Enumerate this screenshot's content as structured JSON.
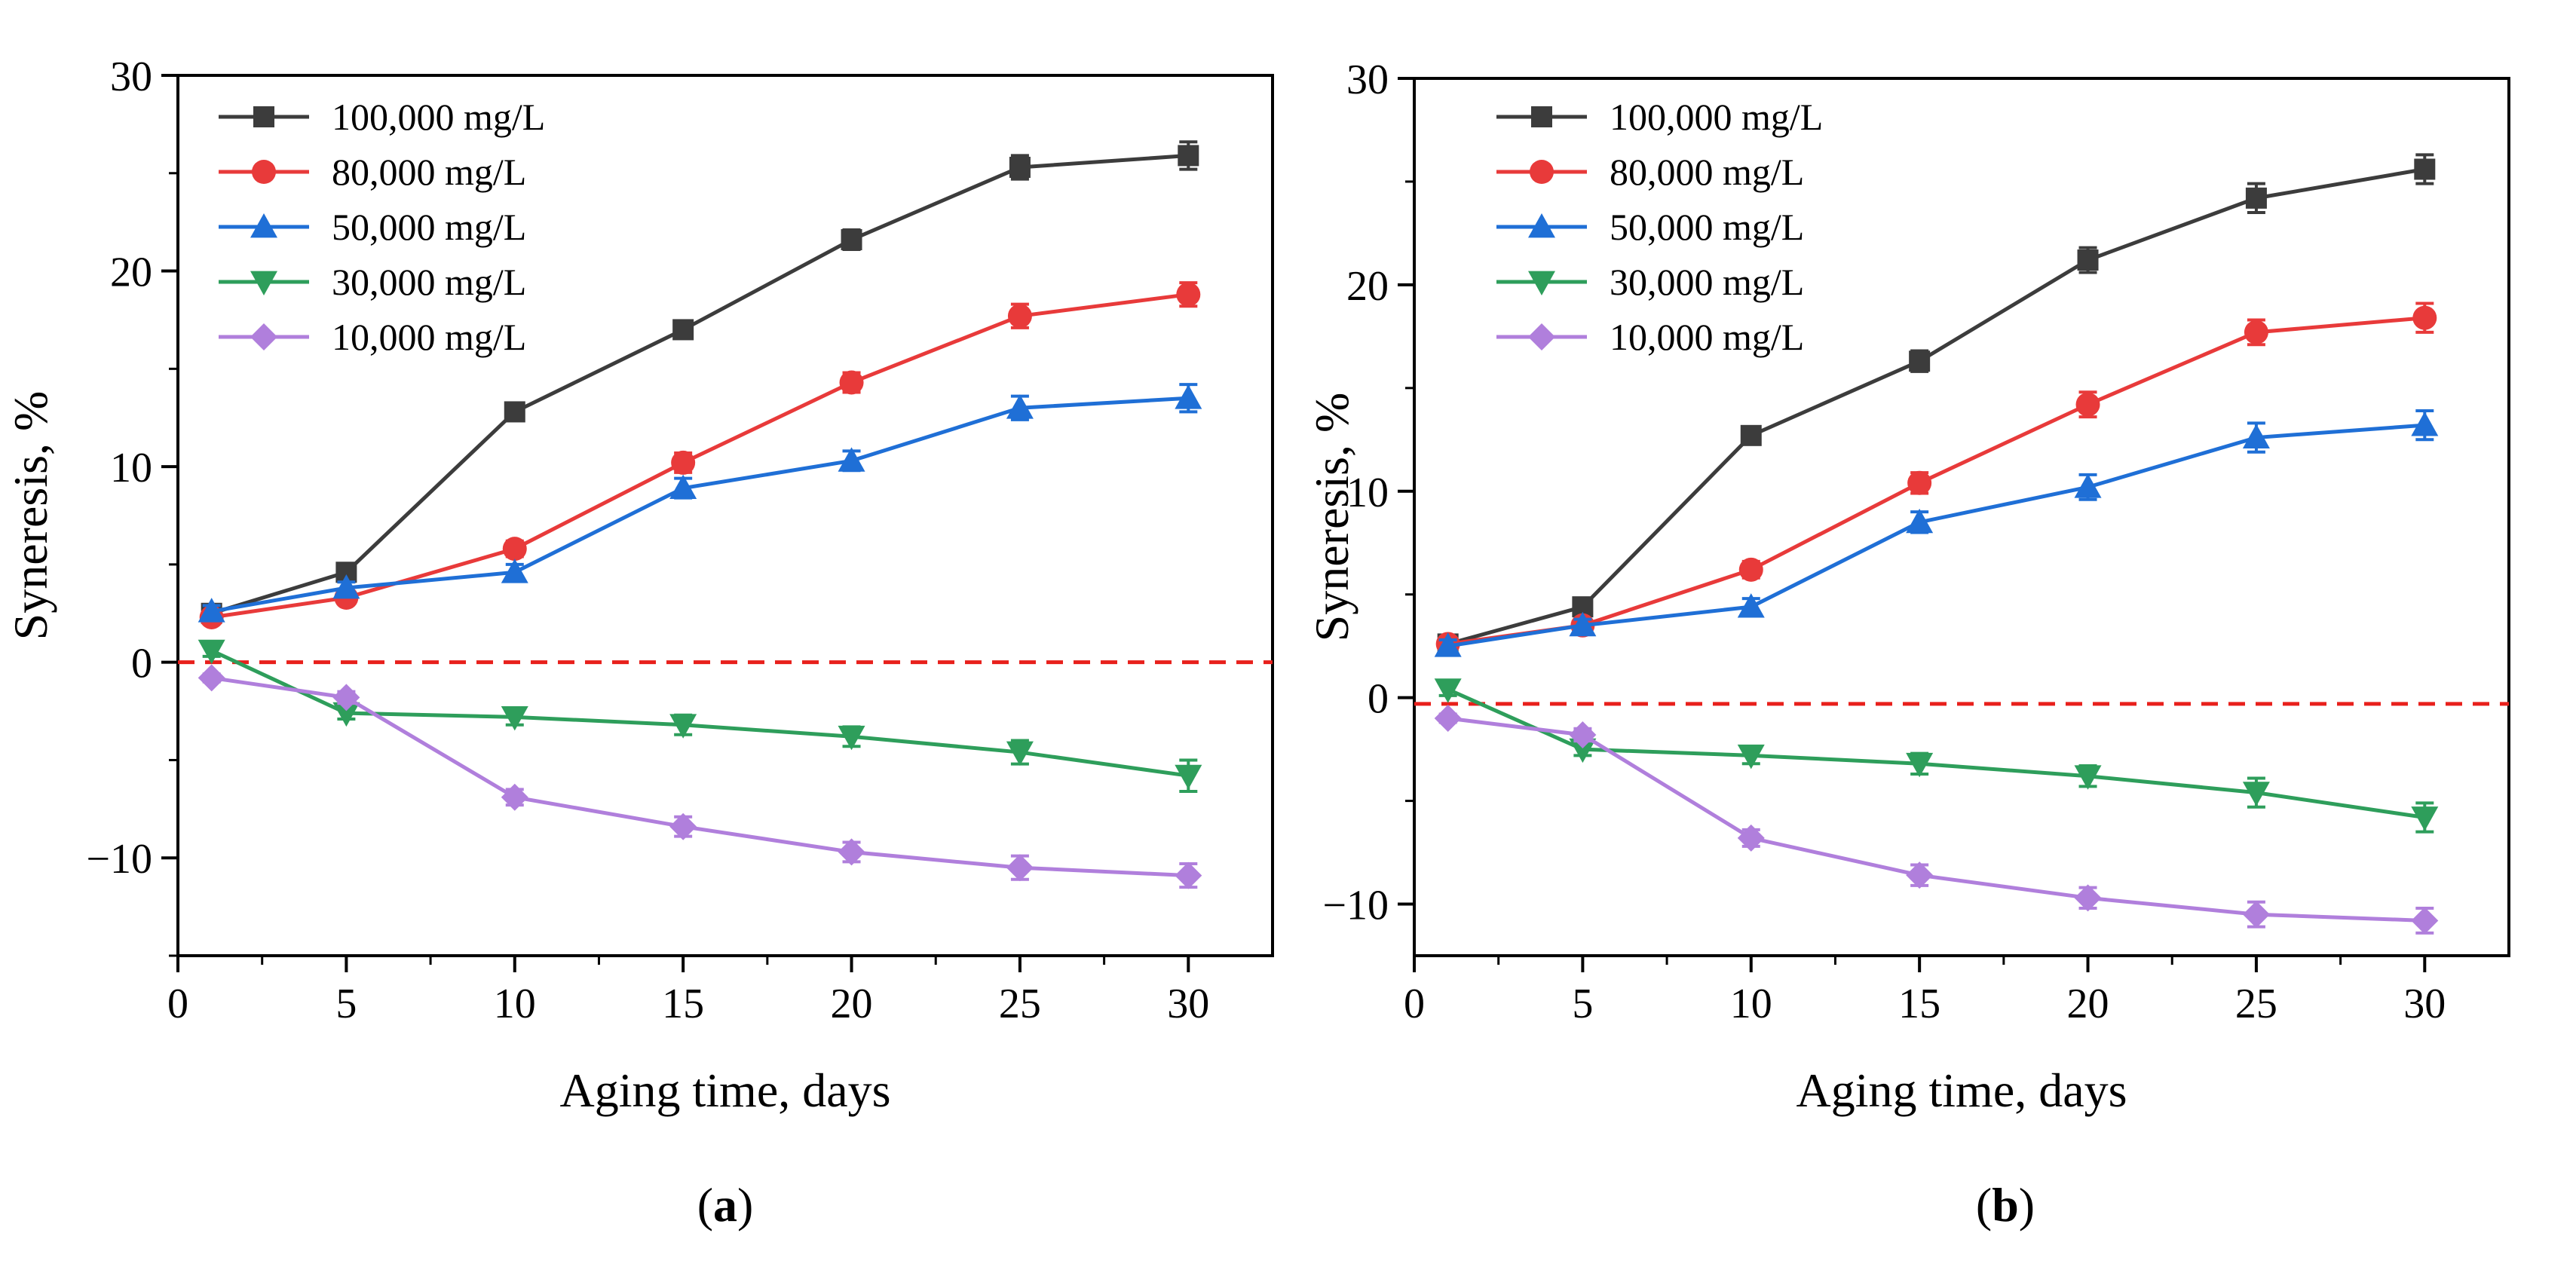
{
  "chart_data": [
    {
      "type": "line",
      "panel_label": "a",
      "xlabel": "Aging time, days",
      "ylabel": "Syneresis, %",
      "xlim": [
        0,
        32.5
      ],
      "ylim": [
        -15,
        30
      ],
      "xticks": [
        0,
        5,
        10,
        15,
        20,
        25,
        30
      ],
      "xtick_labels": [
        "0",
        "5",
        "10",
        "15",
        "20",
        "25",
        "30"
      ],
      "yticks": [
        -10,
        0,
        10,
        20,
        30
      ],
      "ytick_labels": [
        "−10",
        "0",
        "10",
        "20",
        "30"
      ],
      "reference_line": {
        "y": 0,
        "color": "#e8201c",
        "style": "dashed"
      },
      "legend_position": "top-left",
      "x": [
        1,
        5,
        10,
        15,
        20,
        25,
        30
      ],
      "series": [
        {
          "name": "100,000 mg/L",
          "color": "#3c3c3c",
          "marker": "square",
          "values": [
            2.5,
            4.6,
            12.8,
            17.0,
            21.6,
            25.3,
            25.9
          ],
          "errors": [
            0.3,
            0.4,
            0.4,
            0.4,
            0.5,
            0.6,
            0.7
          ]
        },
        {
          "name": "80,000 mg/L",
          "color": "#e83a3a",
          "marker": "circle",
          "values": [
            2.3,
            3.3,
            5.8,
            10.2,
            14.3,
            17.7,
            18.8
          ],
          "errors": [
            0.3,
            0.3,
            0.4,
            0.5,
            0.5,
            0.6,
            0.6
          ]
        },
        {
          "name": "50,000 mg/L",
          "color": "#1f6fd6",
          "marker": "triangle-up",
          "values": [
            2.6,
            3.8,
            4.6,
            8.9,
            10.3,
            13.0,
            13.5
          ],
          "errors": [
            0.3,
            0.3,
            0.4,
            0.5,
            0.5,
            0.6,
            0.7
          ]
        },
        {
          "name": "30,000 mg/L",
          "color": "#2e9e5b",
          "marker": "triangle-down",
          "values": [
            0.6,
            -2.6,
            -2.8,
            -3.2,
            -3.8,
            -4.6,
            -5.8
          ],
          "errors": [
            0.3,
            0.3,
            0.4,
            0.5,
            0.5,
            0.6,
            0.8
          ]
        },
        {
          "name": "10,000 mg/L",
          "color": "#b07fdc",
          "marker": "diamond",
          "values": [
            -0.8,
            -1.8,
            -6.9,
            -8.4,
            -9.7,
            -10.5,
            -10.9
          ],
          "errors": [
            0.2,
            0.3,
            0.4,
            0.5,
            0.5,
            0.6,
            0.6
          ]
        }
      ]
    },
    {
      "type": "line",
      "panel_label": "b",
      "xlabel": "Aging time, days",
      "ylabel": "Syneresis, %",
      "xlim": [
        0,
        32.5
      ],
      "ylim": [
        -12.5,
        30
      ],
      "xticks": [
        0,
        5,
        10,
        15,
        20,
        25,
        30
      ],
      "xtick_labels": [
        "0",
        "5",
        "10",
        "15",
        "20",
        "25",
        "30"
      ],
      "yticks": [
        -10,
        0,
        10,
        20,
        30
      ],
      "ytick_labels": [
        "−10",
        "0",
        "10",
        "20",
        "30"
      ],
      "reference_line": {
        "y": -0.3,
        "color": "#e8201c",
        "style": "dashed"
      },
      "legend_position": "top-left",
      "x": [
        1,
        5,
        10,
        15,
        20,
        25,
        30
      ],
      "series": [
        {
          "name": "100,000 mg/L",
          "color": "#3c3c3c",
          "marker": "square",
          "values": [
            2.6,
            4.4,
            12.7,
            16.3,
            21.2,
            24.2,
            25.6
          ],
          "errors": [
            0.3,
            0.4,
            0.4,
            0.5,
            0.6,
            0.7,
            0.7
          ]
        },
        {
          "name": "80,000 mg/L",
          "color": "#e83a3a",
          "marker": "circle",
          "values": [
            2.6,
            3.5,
            6.2,
            10.4,
            14.2,
            17.7,
            18.4
          ],
          "errors": [
            0.3,
            0.3,
            0.4,
            0.5,
            0.6,
            0.6,
            0.7
          ]
        },
        {
          "name": "50,000 mg/L",
          "color": "#1f6fd6",
          "marker": "triangle-up",
          "values": [
            2.5,
            3.5,
            4.4,
            8.5,
            10.2,
            12.6,
            13.2
          ],
          "errors": [
            0.3,
            0.3,
            0.4,
            0.5,
            0.6,
            0.7,
            0.7
          ]
        },
        {
          "name": "30,000 mg/L",
          "color": "#2e9e5b",
          "marker": "triangle-down",
          "values": [
            0.4,
            -2.5,
            -2.8,
            -3.2,
            -3.8,
            -4.6,
            -5.8
          ],
          "errors": [
            0.3,
            0.3,
            0.4,
            0.5,
            0.5,
            0.7,
            0.7
          ]
        },
        {
          "name": "10,000 mg/L",
          "color": "#b07fdc",
          "marker": "diamond",
          "values": [
            -1.0,
            -1.8,
            -6.8,
            -8.6,
            -9.7,
            -10.5,
            -10.8
          ],
          "errors": [
            0.2,
            0.3,
            0.4,
            0.5,
            0.5,
            0.6,
            0.6
          ]
        }
      ]
    }
  ]
}
